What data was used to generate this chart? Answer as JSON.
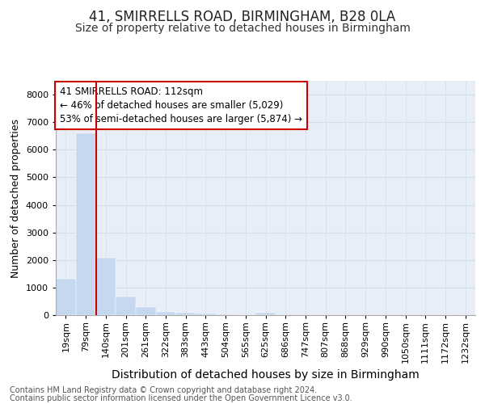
{
  "title": "41, SMIRRELLS ROAD, BIRMINGHAM, B28 0LA",
  "subtitle": "Size of property relative to detached houses in Birmingham",
  "xlabel": "Distribution of detached houses by size in Birmingham",
  "ylabel": "Number of detached properties",
  "footer_line1": "Contains HM Land Registry data © Crown copyright and database right 2024.",
  "footer_line2": "Contains public sector information licensed under the Open Government Licence v3.0.",
  "bin_labels": [
    "19sqm",
    "79sqm",
    "140sqm",
    "201sqm",
    "261sqm",
    "322sqm",
    "383sqm",
    "443sqm",
    "504sqm",
    "565sqm",
    "625sqm",
    "686sqm",
    "747sqm",
    "807sqm",
    "868sqm",
    "929sqm",
    "990sqm",
    "1050sqm",
    "1111sqm",
    "1172sqm",
    "1232sqm"
  ],
  "bar_values": [
    1310,
    6600,
    2080,
    680,
    290,
    130,
    80,
    55,
    30,
    10,
    75,
    0,
    0,
    0,
    0,
    0,
    0,
    0,
    0,
    0,
    0
  ],
  "bar_color": "#c5d8f0",
  "bar_edgecolor": "#c5d8f0",
  "grid_color": "#d5dde8",
  "chart_bg_color": "#e8eef8",
  "fig_bg_color": "#ffffff",
  "red_line_color": "#cc0000",
  "annotation_text": "41 SMIRRELLS ROAD: 112sqm\n← 46% of detached houses are smaller (5,029)\n53% of semi-detached houses are larger (5,874) →",
  "annotation_box_color": "#cc0000",
  "ylim": [
    0,
    8500
  ],
  "yticks": [
    0,
    1000,
    2000,
    3000,
    4000,
    5000,
    6000,
    7000,
    8000
  ],
  "title_fontsize": 12,
  "subtitle_fontsize": 10,
  "axis_label_fontsize": 9,
  "tick_fontsize": 8,
  "annotation_fontsize": 8.5,
  "footer_fontsize": 7
}
